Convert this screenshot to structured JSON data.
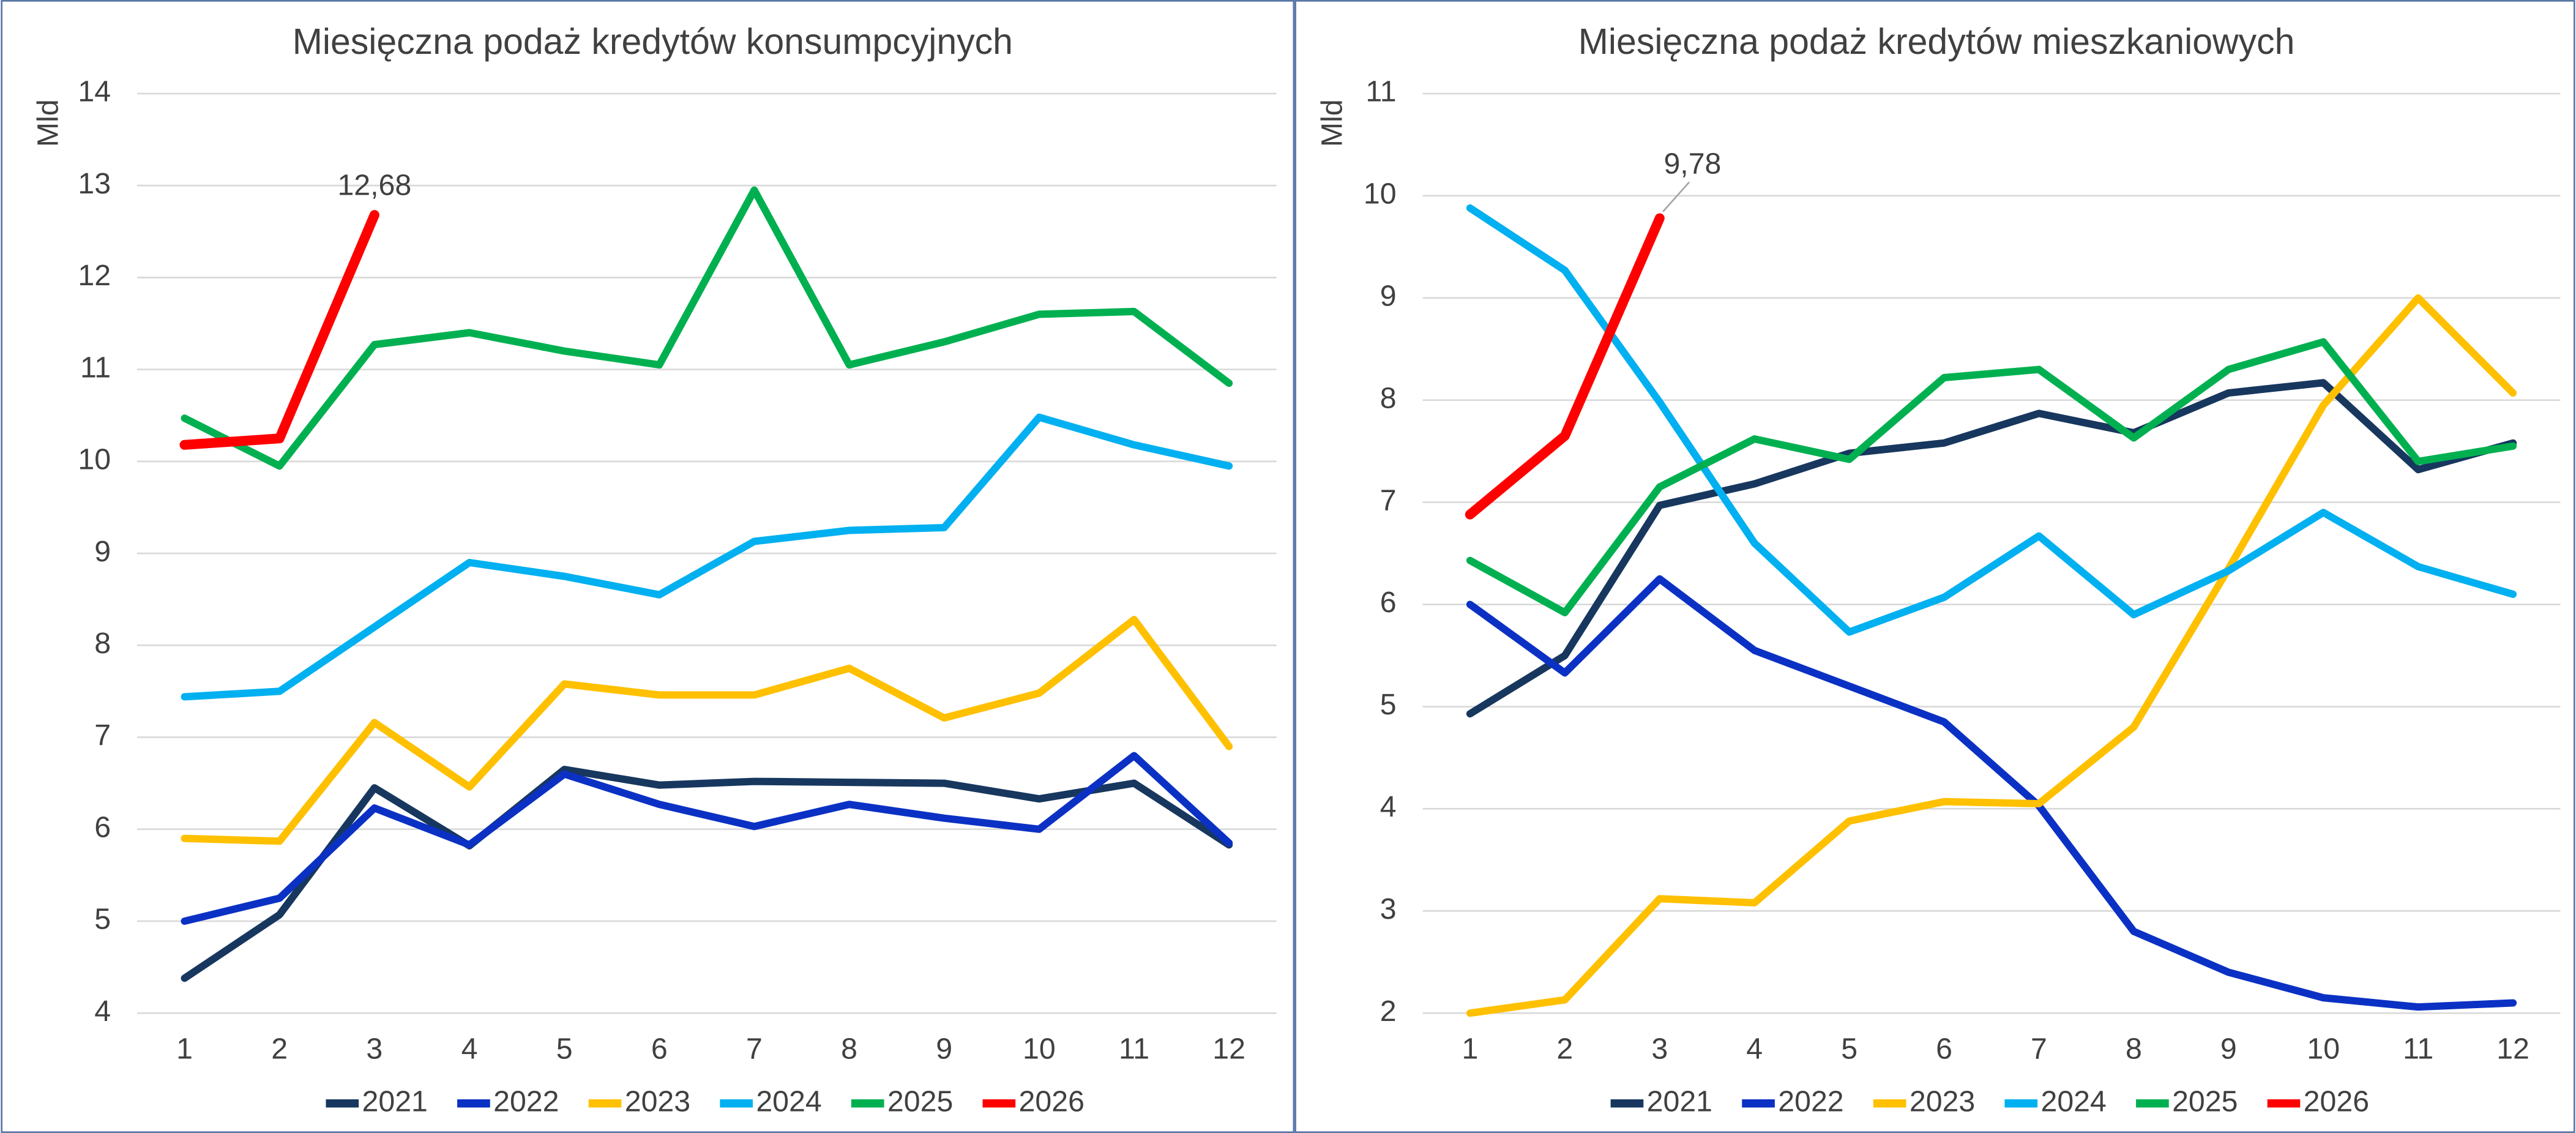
{
  "chart_data": [
    {
      "type": "line",
      "title": "Miesięczna podaż kredytów konsumpcyjnych",
      "y_label": "Mld",
      "categories": [
        1,
        2,
        3,
        4,
        5,
        6,
        7,
        8,
        9,
        10,
        11,
        12
      ],
      "ylim": [
        4,
        14
      ],
      "yticks": [
        4,
        5,
        6,
        7,
        8,
        9,
        10,
        11,
        12,
        13,
        14
      ],
      "grid": true,
      "legend": "bottom",
      "series": [
        {
          "name": "2021",
          "color": "#17375e",
          "values": [
            4.38,
            5.07,
            6.45,
            5.82,
            6.65,
            6.48,
            6.52,
            6.51,
            6.5,
            6.33,
            6.5,
            5.83
          ]
        },
        {
          "name": "2022",
          "color": "#0b31c4",
          "values": [
            5.0,
            5.25,
            6.23,
            5.83,
            6.6,
            6.27,
            6.03,
            6.27,
            6.12,
            6.0,
            6.8,
            5.85
          ]
        },
        {
          "name": "2023",
          "color": "#ffc000",
          "values": [
            5.9,
            5.87,
            7.16,
            6.46,
            7.58,
            7.46,
            7.46,
            7.75,
            7.21,
            7.48,
            8.28,
            6.9
          ]
        },
        {
          "name": "2024",
          "color": "#00b0f0",
          "values": [
            7.44,
            7.5,
            8.2,
            8.9,
            8.75,
            8.55,
            9.13,
            9.25,
            9.28,
            10.48,
            10.18,
            9.95
          ]
        },
        {
          "name": "2025",
          "color": "#00b050",
          "values": [
            10.47,
            9.95,
            11.27,
            11.4,
            11.2,
            11.05,
            12.95,
            11.05,
            11.3,
            11.6,
            11.63,
            10.85
          ]
        },
        {
          "name": "2026",
          "color": "#ff0000",
          "values": [
            10.18,
            10.25,
            12.68,
            null,
            null,
            null,
            null,
            null,
            null,
            null,
            null,
            null
          ],
          "value_labels": [
            null,
            null,
            "12,68",
            null,
            null,
            null,
            null,
            null,
            null,
            null,
            null,
            null
          ]
        }
      ]
    },
    {
      "type": "line",
      "title": "Miesięczna podaż kredytów mieszkaniowych",
      "y_label": "Mld",
      "categories": [
        1,
        2,
        3,
        4,
        5,
        6,
        7,
        8,
        9,
        10,
        11,
        12
      ],
      "ylim": [
        2,
        11
      ],
      "yticks": [
        2,
        3,
        4,
        5,
        6,
        7,
        8,
        9,
        10,
        11
      ],
      "grid": true,
      "legend": "bottom",
      "series": [
        {
          "name": "2021",
          "color": "#17375e",
          "values": [
            4.93,
            5.5,
            6.97,
            7.18,
            7.48,
            7.58,
            7.87,
            7.68,
            8.07,
            8.17,
            7.32,
            7.58
          ]
        },
        {
          "name": "2022",
          "color": "#0b31c4",
          "values": [
            6.0,
            5.33,
            6.25,
            5.55,
            5.2,
            4.85,
            4.03,
            2.8,
            2.4,
            2.15,
            2.06,
            2.1
          ]
        },
        {
          "name": "2023",
          "color": "#ffc000",
          "values": [
            2.0,
            2.13,
            3.12,
            3.08,
            3.88,
            4.07,
            4.05,
            4.8,
            6.35,
            7.95,
            9.0,
            8.07
          ]
        },
        {
          "name": "2024",
          "color": "#00b0f0",
          "values": [
            9.88,
            9.27,
            7.98,
            6.6,
            5.73,
            6.07,
            6.67,
            5.9,
            6.33,
            6.9,
            6.37,
            6.1
          ]
        },
        {
          "name": "2025",
          "color": "#00b050",
          "values": [
            6.43,
            5.92,
            7.15,
            7.62,
            7.42,
            8.22,
            8.3,
            7.63,
            8.3,
            8.57,
            7.4,
            7.55
          ]
        },
        {
          "name": "2026",
          "color": "#ff0000",
          "values": [
            6.88,
            7.65,
            9.78,
            null,
            null,
            null,
            null,
            null,
            null,
            null,
            null,
            null
          ],
          "value_labels": [
            null,
            null,
            "9,78",
            null,
            null,
            null,
            null,
            null,
            null,
            null,
            null,
            null
          ]
        }
      ]
    }
  ]
}
